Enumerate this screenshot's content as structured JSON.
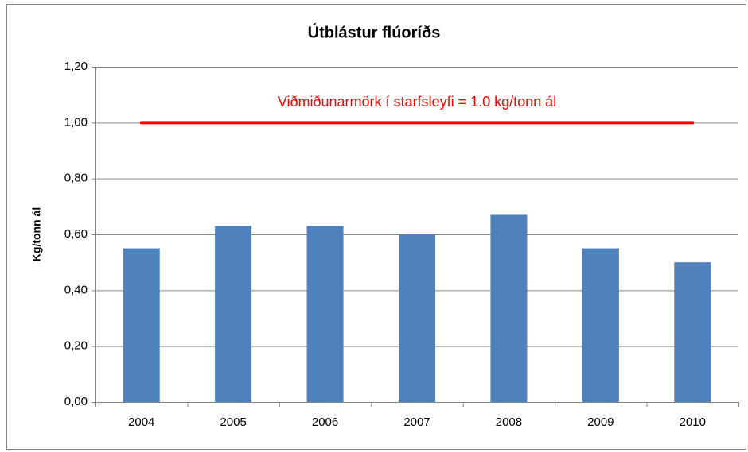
{
  "chart_data": {
    "type": "bar",
    "title": "Útblástur flúoríðs",
    "y_label": "Kg/tonn ál",
    "categories": [
      "2004",
      "2005",
      "2006",
      "2007",
      "2008",
      "2009",
      "2010"
    ],
    "values": [
      0.55,
      0.63,
      0.63,
      0.6,
      0.67,
      0.55,
      0.5
    ],
    "color": "#4f81bd",
    "ylim": [
      0,
      1.2
    ],
    "yticks": [
      {
        "value": 0,
        "label": "0,00"
      },
      {
        "value": 0.2,
        "label": "0,20"
      },
      {
        "value": 0.4,
        "label": "0,40"
      },
      {
        "value": 0.6,
        "label": "0,60"
      },
      {
        "value": 0.8,
        "label": "0,80"
      },
      {
        "value": 1.0,
        "label": "1,00"
      },
      {
        "value": 1.2,
        "label": "1,20"
      }
    ],
    "grid": true,
    "reference_line": {
      "value": 1.0,
      "label": "Viðmiðunarmörk í starfsleyfi = 1.0 kg/tonn ál",
      "color": "#ff0000"
    }
  }
}
